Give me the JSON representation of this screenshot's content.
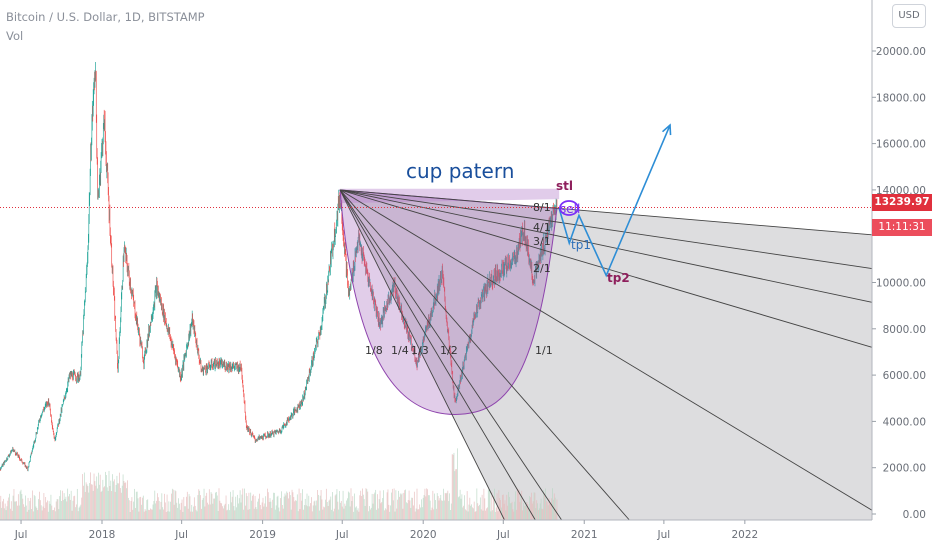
{
  "header": {
    "symbol_line": "Bitcoin / U.S. Dollar, 1D, BITSTAMP",
    "volume_label": "Vol",
    "currency_button": "USD"
  },
  "price_scale": {
    "ticks": [
      "20000.00",
      "18000.00",
      "16000.00",
      "14000.00",
      "10000.00",
      "8000.00",
      "6000.00",
      "4000.00",
      "2000.00",
      "0.00"
    ],
    "current_price": "13239.97",
    "countdown": "11:11:31",
    "current_price_value": 13239.97
  },
  "time_scale": {
    "ticks": [
      {
        "label": "Jul",
        "date": "2017-07-01"
      },
      {
        "label": "2018",
        "date": "2018-01-01"
      },
      {
        "label": "Jul",
        "date": "2018-07-01"
      },
      {
        "label": "2019",
        "date": "2019-01-01"
      },
      {
        "label": "Jul",
        "date": "2019-07-01"
      },
      {
        "label": "2020",
        "date": "2020-01-01"
      },
      {
        "label": "Jul",
        "date": "2020-07-01"
      },
      {
        "label": "2021",
        "date": "2021-01-01"
      },
      {
        "label": "Jul",
        "date": "2021-07-01"
      },
      {
        "label": "2022",
        "date": "2022-01-01"
      }
    ]
  },
  "chart_data": {
    "type": "candlestick",
    "title": "Bitcoin / U.S. Dollar, 1D, BITSTAMP",
    "ylim": [
      0,
      21000
    ],
    "xlim": [
      "2017-04-15",
      "2022-07-01"
    ],
    "grid": false,
    "price_path": [
      [
        "2017-04-15",
        1150
      ],
      [
        "2017-05-20",
        2100
      ],
      [
        "2017-06-12",
        2800
      ],
      [
        "2017-07-16",
        1950
      ],
      [
        "2017-08-15",
        4300
      ],
      [
        "2017-09-02",
        4900
      ],
      [
        "2017-09-15",
        3200
      ],
      [
        "2017-10-20",
        6000
      ],
      [
        "2017-11-12",
        5900
      ],
      [
        "2017-11-29",
        11000
      ],
      [
        "2017-12-08",
        16500
      ],
      [
        "2017-12-17",
        19600
      ],
      [
        "2017-12-22",
        13500
      ],
      [
        "2018-01-06",
        17000
      ],
      [
        "2018-02-06",
        6200
      ],
      [
        "2018-02-20",
        11500
      ],
      [
        "2018-04-06",
        6600
      ],
      [
        "2018-05-05",
        9800
      ],
      [
        "2018-06-29",
        5900
      ],
      [
        "2018-07-25",
        8400
      ],
      [
        "2018-08-15",
        6200
      ],
      [
        "2018-09-15",
        6500
      ],
      [
        "2018-11-14",
        6300
      ],
      [
        "2018-11-25",
        3800
      ],
      [
        "2018-12-15",
        3200
      ],
      [
        "2019-02-10",
        3600
      ],
      [
        "2019-04-02",
        4900
      ],
      [
        "2019-05-15",
        8200
      ],
      [
        "2019-06-26",
        13800
      ],
      [
        "2019-07-16",
        9400
      ],
      [
        "2019-08-06",
        11900
      ],
      [
        "2019-09-25",
        8200
      ],
      [
        "2019-10-26",
        9900
      ],
      [
        "2019-12-18",
        6500
      ],
      [
        "2020-02-13",
        10400
      ],
      [
        "2020-03-13",
        4800
      ],
      [
        "2020-04-30",
        8800
      ],
      [
        "2020-06-01",
        10100
      ],
      [
        "2020-07-27",
        11000
      ],
      [
        "2020-08-17",
        12300
      ],
      [
        "2020-09-08",
        10100
      ],
      [
        "2020-10-21",
        12900
      ],
      [
        "2020-10-31",
        13240
      ]
    ],
    "annotations": {
      "pattern_label": "cup patern",
      "sl_label": "stl",
      "sell_label": "sell",
      "tp1_label": "tp1",
      "tp2_label": "tp2",
      "fan_labels": [
        "1/8",
        "1/4",
        "1/3",
        "1/2",
        "1/1",
        "8/1",
        "4/1",
        "3/1",
        "2/1"
      ],
      "projection_path": [
        [
          "2020-11-05",
          13200
        ],
        [
          "2020-11-28",
          11700
        ],
        [
          "2020-12-20",
          12900
        ],
        [
          "2021-02-20",
          10300
        ],
        [
          "2021-07-15",
          16800
        ]
      ],
      "fan_origin": [
        "2019-06-26",
        14000
      ],
      "fan_end_date": "2020-11-05",
      "fan_end_values": [
        -5000,
        -2000,
        -100,
        3200,
        8300,
        13200,
        12600,
        12000,
        11200
      ],
      "cup_rect": {
        "x1": "2019-06-26",
        "x2": "2020-11-05",
        "y1": 13600,
        "y2": 14050
      },
      "cup_bottom": [
        "2020-03-13",
        4300
      ],
      "cup_right": [
        "2020-10-31",
        13200
      ],
      "gray_region": {
        "x_start": "2019-06-26",
        "x_end": "2022-07-01"
      }
    }
  }
}
